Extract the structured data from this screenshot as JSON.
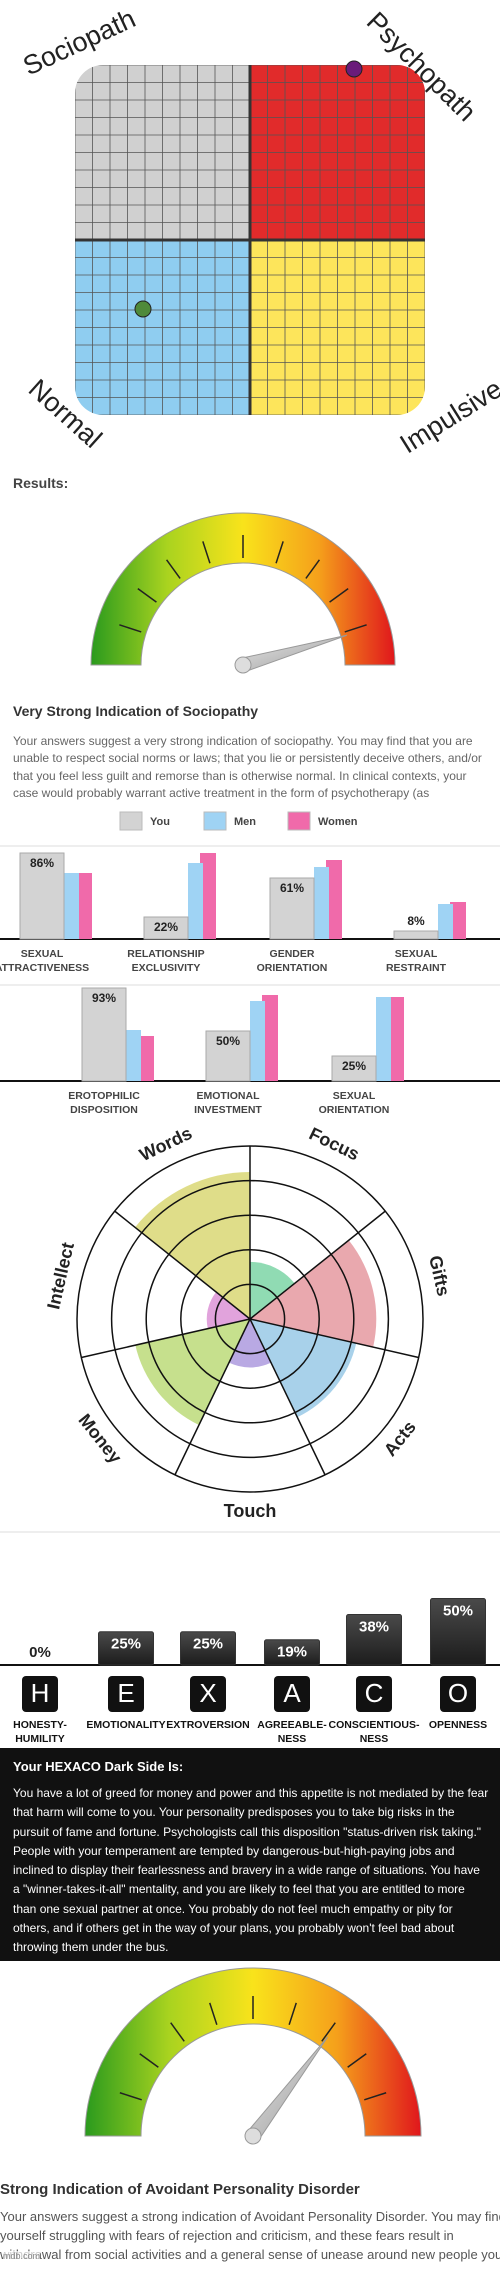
{
  "quadrant": {
    "top_left": "Sociopath",
    "top_right": "Psychopath",
    "bottom_left": "Normal",
    "bottom_right": "Impulsive"
  },
  "results_label": "Results:",
  "sociopathy": {
    "title": "Very Strong Indication of Sociopathy",
    "text": "Your answers suggest a very strong indication of sociopathy. You may find that you are unable to respect social norms or laws; that you lie or persistently deceive others, and/or that you feel less guilt and remorse than is otherwise normal. In clinical contexts, your case would probably warrant active treatment in the form of psychotherapy (as"
  },
  "chart_data": [
    {
      "type": "bar",
      "categories": [
        [
          "SEXUAL",
          "ATTRACTIVENESS"
        ],
        [
          "RELATIONSHIP",
          "EXCLUSIVITY"
        ],
        [
          "GENDER",
          "ORIENTATION"
        ],
        [
          "SEXUAL",
          "RESTRAINT"
        ],
        [
          "EROTOPHILIC",
          "DISPOSITION"
        ],
        [
          "EMOTIONAL",
          "INVESTMENT"
        ],
        [
          "SEXUAL",
          "ORIENTATION"
        ]
      ],
      "series": [
        {
          "name": "You",
          "color": "#d3d3d3",
          "values": [
            86,
            22,
            61,
            8,
            93,
            50,
            25
          ],
          "value_labels": [
            "86%",
            "22%",
            "61%",
            "8%",
            "93%",
            "50%",
            "25%"
          ]
        },
        {
          "name": "Men",
          "color": "#9fd3f4",
          "values": [
            66,
            76,
            72,
            35,
            51,
            80,
            84
          ]
        },
        {
          "name": "Women",
          "color": "#f06aaa",
          "values": [
            66,
            86,
            79,
            37,
            45,
            86,
            84
          ]
        }
      ],
      "ylim": [
        0,
        100
      ],
      "legend": "top"
    },
    {
      "type": "polar",
      "categories": [
        "Words",
        "Focus",
        "Gifts",
        "Acts",
        "Touch",
        "Money",
        "Intellect"
      ],
      "values": [
        85,
        33,
        73,
        63,
        28,
        68,
        25
      ],
      "colors": [
        "#d7d56b",
        "#74d2a0",
        "#e3929a",
        "#92c5e5",
        "#a794dc",
        "#b8d870",
        "#da8cd3"
      ],
      "rlim": [
        0,
        100
      ],
      "rticks": [
        20,
        40,
        60,
        80,
        100
      ]
    },
    {
      "type": "bar",
      "categories": [
        [
          "HONESTY-",
          "HUMILITY"
        ],
        [
          "EMOTIONALITY"
        ],
        [
          "EXTROVERSION"
        ],
        [
          "AGREEABLE-",
          "NESS"
        ],
        [
          "CONSCIENTIOUS-",
          "NESS"
        ],
        [
          "OPENNESS"
        ]
      ],
      "letters": [
        "H",
        "E",
        "X",
        "A",
        "C",
        "O"
      ],
      "values": [
        0,
        25,
        25,
        19,
        38,
        50
      ],
      "value_labels": [
        "0%",
        "25%",
        "25%",
        "19%",
        "38%",
        "50%"
      ],
      "color": "#333333",
      "ylim": [
        0,
        100
      ]
    }
  ],
  "hexaco_dark_side": {
    "title": "Your HEXACO Dark Side Is:",
    "text": "You have a lot of greed for money and power and this appetite is not mediated by the fear that harm will come to you. Your personality predisposes you to take big risks in the pursuit of fame and fortune. Psychologists call this disposition \"status-driven risk taking.\" People with your temperament are tempted by dangerous-but-high-paying jobs and inclined to display their fearlessness and bravery in a wide range of situations. You have a \"winner-takes-it-all\" mentality, and you are likely to feel that you are entitled to more than one sexual partner at once. You probably do not feel much empathy or pity for others, and if others get in the way of your plans, you probably won't feel bad about throwing them under the bus."
  },
  "avoidant": {
    "title": "Strong Indication of Avoidant Personality Disorder",
    "text": "Your answers suggest a strong indication of Avoidant Personality Disorder. You may find yourself struggling with fears of rejection and criticism, and these fears result in withdrawal from social activities and a general sense of unease around new people you"
  },
  "watermark": "mdb.com"
}
